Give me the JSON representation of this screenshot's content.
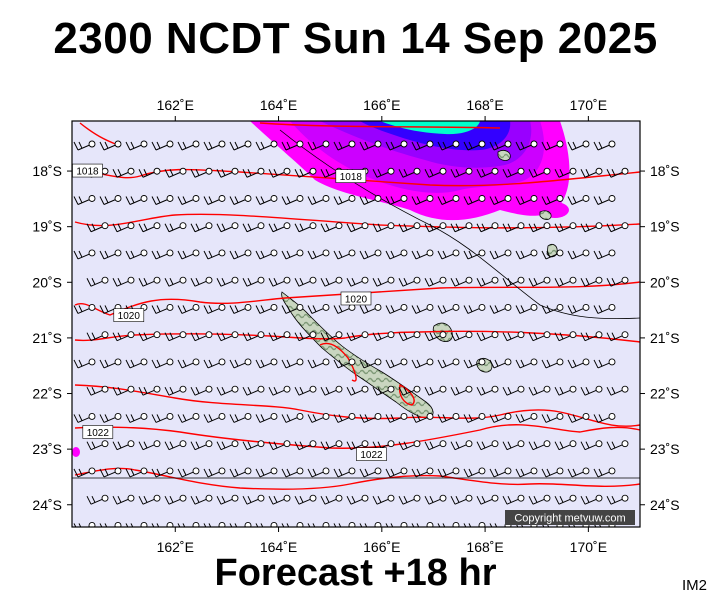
{
  "title": "2300 NCDT Sun 14 Sep 2025",
  "forecast_label": "Forecast +18 hr",
  "product_code": "IM2",
  "copyright": "Copyright metvuw.com",
  "colors": {
    "background": "#e6e6fa",
    "isobar": "#ff0000",
    "wind_barb": "#000000",
    "land": "#b8c9b0",
    "rain_light": "#ff00ff",
    "rain_medium": "#9900ff",
    "rain_heavy": "#0000ff",
    "rain_extreme": "#00ffcc"
  },
  "map": {
    "lon_range": [
      160.0,
      171.0
    ],
    "lat_range": [
      -24.4,
      -17.1
    ],
    "lon_ticks": [
      {
        "value": 162,
        "label": "162˚E"
      },
      {
        "value": 164,
        "label": "164˚E"
      },
      {
        "value": 166,
        "label": "166˚E"
      },
      {
        "value": 168,
        "label": "168˚E"
      },
      {
        "value": 170,
        "label": "170˚E"
      }
    ],
    "lat_ticks": [
      {
        "value": -18,
        "label": "18˚S"
      },
      {
        "value": -19,
        "label": "19˚S"
      },
      {
        "value": -20,
        "label": "20˚S"
      },
      {
        "value": -21,
        "label": "21˚S"
      },
      {
        "value": -22,
        "label": "22˚S"
      },
      {
        "value": -23,
        "label": "23˚S"
      },
      {
        "value": -24,
        "label": "24˚S"
      }
    ],
    "isobar_labels": [
      {
        "text": "1018",
        "lon": 160.3,
        "lat": -18.0
      },
      {
        "text": "1018",
        "lon": 165.4,
        "lat": -18.1
      },
      {
        "text": "1020",
        "lon": 165.5,
        "lat": -20.3
      },
      {
        "text": "1020",
        "lon": 161.1,
        "lat": -20.6
      },
      {
        "text": "1022",
        "lon": 160.5,
        "lat": -22.7
      },
      {
        "text": "1022",
        "lon": 165.8,
        "lat": -23.1
      }
    ]
  }
}
